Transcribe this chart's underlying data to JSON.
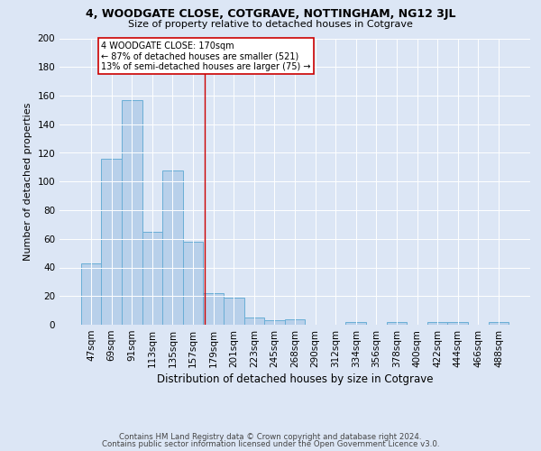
{
  "title1": "4, WOODGATE CLOSE, COTGRAVE, NOTTINGHAM, NG12 3JL",
  "title2": "Size of property relative to detached houses in Cotgrave",
  "xlabel": "Distribution of detached houses by size in Cotgrave",
  "ylabel": "Number of detached properties",
  "categories": [
    "47sqm",
    "69sqm",
    "91sqm",
    "113sqm",
    "135sqm",
    "157sqm",
    "179sqm",
    "201sqm",
    "223sqm",
    "245sqm",
    "268sqm",
    "290sqm",
    "312sqm",
    "334sqm",
    "356sqm",
    "378sqm",
    "400sqm",
    "422sqm",
    "444sqm",
    "466sqm",
    "488sqm"
  ],
  "values": [
    43,
    116,
    157,
    65,
    108,
    58,
    22,
    19,
    5,
    3,
    4,
    0,
    0,
    2,
    0,
    2,
    0,
    2,
    2,
    0,
    2
  ],
  "bar_color": "#b8d0ea",
  "bar_edge_color": "#6aaed6",
  "annotation_text": "4 WOODGATE CLOSE: 170sqm\n← 87% of detached houses are smaller (521)\n13% of semi-detached houses are larger (75) →",
  "annotation_box_color": "#ffffff",
  "annotation_border_color": "#cc0000",
  "red_line_color": "#cc0000",
  "footer1": "Contains HM Land Registry data © Crown copyright and database right 2024.",
  "footer2": "Contains public sector information licensed under the Open Government Licence v3.0.",
  "bg_color": "#dce6f5",
  "plot_bg_color": "#dce6f5",
  "ylim": [
    0,
    200
  ],
  "yticks": [
    0,
    20,
    40,
    60,
    80,
    100,
    120,
    140,
    160,
    180,
    200
  ],
  "title1_fontsize": 9.0,
  "title2_fontsize": 8.0,
  "xlabel_fontsize": 8.5,
  "ylabel_fontsize": 8.0,
  "tick_fontsize": 7.5,
  "footer_fontsize": 6.2
}
